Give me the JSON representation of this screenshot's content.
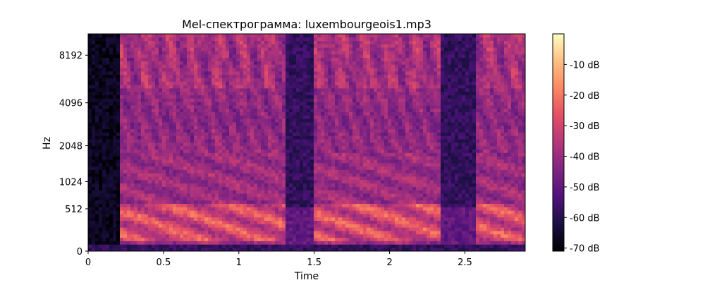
{
  "chart_data": {
    "type": "heatmap",
    "title": "Mel-спектрограмма: luxembourgeois1.mp3",
    "xlabel": "Time",
    "ylabel": "Hz",
    "xlim": [
      0,
      2.9
    ],
    "x_ticks": [
      {
        "value": 0,
        "label": "0"
      },
      {
        "value": 0.5,
        "label": "0.5"
      },
      {
        "value": 1,
        "label": "1"
      },
      {
        "value": 1.5,
        "label": "1.5"
      },
      {
        "value": 2,
        "label": "2"
      },
      {
        "value": 2.5,
        "label": "2.5"
      }
    ],
    "y_scale": "mel",
    "y_ticks": [
      {
        "value": 0,
        "label": "0"
      },
      {
        "value": 512,
        "label": "512"
      },
      {
        "value": 1024,
        "label": "1024"
      },
      {
        "value": 2048,
        "label": "2048"
      },
      {
        "value": 4096,
        "label": "4096"
      },
      {
        "value": 8192,
        "label": "8192"
      }
    ],
    "colorbar": {
      "colormap": "magma",
      "range": [
        -71,
        0
      ],
      "ticks": [
        {
          "value": -10,
          "label": "-10 dB"
        },
        {
          "value": -20,
          "label": "-20 dB"
        },
        {
          "value": -30,
          "label": "-30 dB"
        },
        {
          "value": -40,
          "label": "-40 dB"
        },
        {
          "value": -50,
          "label": "-50 dB"
        },
        {
          "value": -60,
          "label": "-60 dB"
        },
        {
          "value": -70,
          "label": "-70 dB"
        }
      ]
    },
    "segments": [
      {
        "start": 0.0,
        "end": 0.22,
        "level": "silence"
      },
      {
        "start": 0.22,
        "end": 0.6,
        "level": "speech"
      },
      {
        "start": 0.6,
        "end": 1.02,
        "level": "speech"
      },
      {
        "start": 1.02,
        "end": 1.32,
        "level": "speech"
      },
      {
        "start": 1.32,
        "end": 1.5,
        "level": "gap"
      },
      {
        "start": 1.5,
        "end": 2.1,
        "level": "speech"
      },
      {
        "start": 2.1,
        "end": 2.35,
        "level": "speech"
      },
      {
        "start": 2.35,
        "end": 2.58,
        "level": "gap"
      },
      {
        "start": 2.58,
        "end": 2.9,
        "level": "speech"
      }
    ]
  }
}
